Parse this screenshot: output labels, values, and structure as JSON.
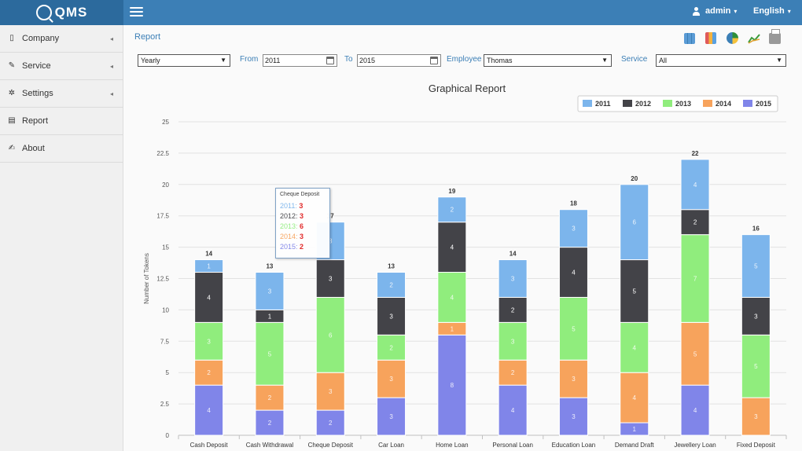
{
  "header": {
    "logo_text": "QMS",
    "user_label": "admin",
    "language_label": "English"
  },
  "sidebar": {
    "items": [
      {
        "label": "Company",
        "icon": "building-icon",
        "has_arrow": true
      },
      {
        "label": "Service",
        "icon": "wrench-icon",
        "has_arrow": true
      },
      {
        "label": "Settings",
        "icon": "gear-icon",
        "has_arrow": true
      },
      {
        "label": "Report",
        "icon": "document-icon",
        "has_arrow": false
      },
      {
        "label": "About",
        "icon": "edit-icon",
        "has_arrow": false
      }
    ]
  },
  "breadcrumb": "Report",
  "toolbar": {
    "icons": [
      "grid-icon",
      "bar-chart-icon",
      "pie-chart-icon",
      "line-chart-icon",
      "print-icon"
    ]
  },
  "filters": {
    "period": "Yearly",
    "from_label": "From",
    "from_value": "2011",
    "to_label": "To",
    "to_value": "2015",
    "employee_label": "Employee",
    "employee_value": "Thomas",
    "service_label": "Service",
    "service_value": "All"
  },
  "tooltip": {
    "title": "Cheque Deposit",
    "rows": [
      {
        "year": "2011",
        "value": "3"
      },
      {
        "year": "2012",
        "value": "3"
      },
      {
        "year": "2013",
        "value": "6"
      },
      {
        "year": "2014",
        "value": "3"
      },
      {
        "year": "2015",
        "value": "2"
      }
    ]
  },
  "colors": {
    "2011": "#7cb5ec",
    "2012": "#434348",
    "2013": "#90ed7d",
    "2014": "#f7a35c",
    "2015": "#8085e9",
    "header": "#3c7fb6",
    "accent": "#3c7fb6"
  },
  "chart_data": {
    "type": "bar",
    "stacked": true,
    "title": "Graphical Report",
    "xlabel": "",
    "ylabel": "Number of Tokens",
    "ylim": [
      0,
      25
    ],
    "yticks": [
      "0",
      "2.5",
      "5",
      "7.5",
      "10",
      "12.5",
      "15",
      "17.5",
      "20",
      "22.5",
      "25"
    ],
    "legend_position": "top-right",
    "grid": true,
    "categories": [
      "Cash Deposit",
      "Cash Withdrawal",
      "Cheque Deposit",
      "Car Loan",
      "Home Loan",
      "Personal Loan",
      "Education Loan",
      "Demand Draft",
      "Jewellery Loan",
      "Fixed Deposit"
    ],
    "totals": [
      14,
      13,
      17,
      13,
      19,
      14,
      18,
      20,
      22,
      16
    ],
    "series": [
      {
        "name": "2015",
        "values": [
          4,
          2,
          2,
          3,
          8,
          4,
          3,
          1,
          4,
          0
        ]
      },
      {
        "name": "2014",
        "values": [
          2,
          2,
          3,
          3,
          1,
          2,
          3,
          4,
          5,
          3
        ]
      },
      {
        "name": "2013",
        "values": [
          3,
          5,
          6,
          2,
          4,
          3,
          5,
          4,
          7,
          5
        ]
      },
      {
        "name": "2012",
        "values": [
          4,
          1,
          3,
          3,
          4,
          2,
          4,
          5,
          2,
          3
        ]
      },
      {
        "name": "2011",
        "values": [
          1,
          3,
          3,
          2,
          2,
          3,
          3,
          6,
          4,
          5
        ]
      }
    ],
    "legend_order": [
      "2011",
      "2012",
      "2013",
      "2014",
      "2015"
    ]
  }
}
